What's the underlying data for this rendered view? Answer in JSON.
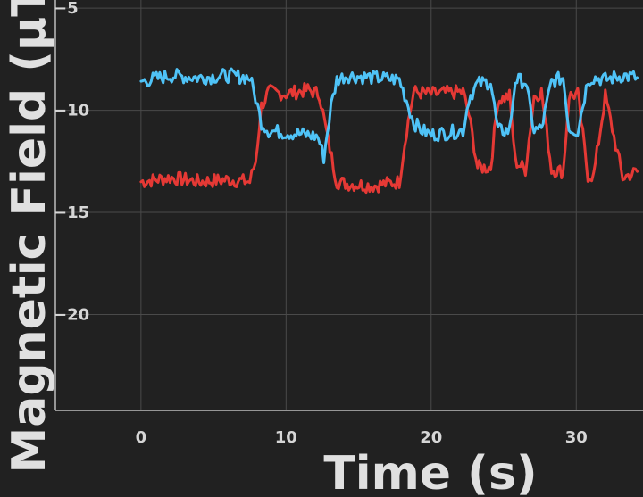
{
  "chart_data": {
    "type": "line",
    "xlabel": "Time (s)",
    "ylabel": "Magnetic Field (µT)",
    "xlim": [
      -5.9,
      34.6
    ],
    "ylim": [
      -24.7,
      -4.6
    ],
    "x_ticks": [
      0,
      10,
      20,
      30
    ],
    "y_ticks": [
      -5,
      -10,
      -15,
      -20
    ],
    "grid": true,
    "background": "#212121",
    "grid_color": "#4a4a4a",
    "series": [
      {
        "color": "#e53935",
        "x": [
          0,
          2,
          4,
          6,
          7.5,
          7.9,
          8.3,
          8.8,
          10,
          11.5,
          12.3,
          12.9,
          13.5,
          14.2,
          16,
          17.8,
          18.3,
          18.8,
          20,
          22.2,
          22.6,
          23.2,
          24.1,
          24.6,
          25.4,
          25.8,
          26.5,
          27.1,
          27.6,
          28.3,
          29.1,
          29.5,
          30.1,
          30.8,
          31.2,
          32,
          33.2,
          34.2
        ],
        "y": [
          -13.5,
          -13.3,
          -13.5,
          -13.4,
          -13.5,
          -12.5,
          -9.8,
          -9.1,
          -9.2,
          -9,
          -9.2,
          -11.5,
          -13.5,
          -13.6,
          -13.7,
          -13.5,
          -11,
          -9.1,
          -9.2,
          -9.1,
          -10.2,
          -12.8,
          -12.8,
          -9.5,
          -9.3,
          -12.5,
          -12.9,
          -9.3,
          -9.1,
          -12.9,
          -13,
          -9.3,
          -9.2,
          -13.2,
          -13.2,
          -9.3,
          -13.3,
          -13
        ]
      },
      {
        "color": "#4fc3f7",
        "x": [
          0,
          2,
          4,
          6,
          7.5,
          7.9,
          8.3,
          8.8,
          10,
          11.5,
          12.2,
          12.6,
          13.1,
          13.5,
          14.2,
          16,
          17.8,
          18.3,
          18.8,
          19.4,
          20,
          22.2,
          22.6,
          23.2,
          24.1,
          24.6,
          25.4,
          25.8,
          26.5,
          27.1,
          27.6,
          28.3,
          29.1,
          29.5,
          30.1,
          30.8,
          31.2,
          32,
          33.2,
          34.2
        ],
        "y": [
          -8.6,
          -8.3,
          -8.4,
          -8.3,
          -8.4,
          -9.4,
          -10.6,
          -11,
          -11.1,
          -11.2,
          -11.3,
          -12.3,
          -9.8,
          -8.5,
          -8.3,
          -8.4,
          -8.5,
          -9.5,
          -10.6,
          -11,
          -11.2,
          -11,
          -9.4,
          -8.7,
          -8.6,
          -11,
          -11,
          -8.5,
          -8.6,
          -11,
          -10.9,
          -8.6,
          -8.4,
          -10.9,
          -11,
          -8.5,
          -8.4,
          -8.5,
          -8.3,
          -8.4
        ]
      }
    ]
  }
}
